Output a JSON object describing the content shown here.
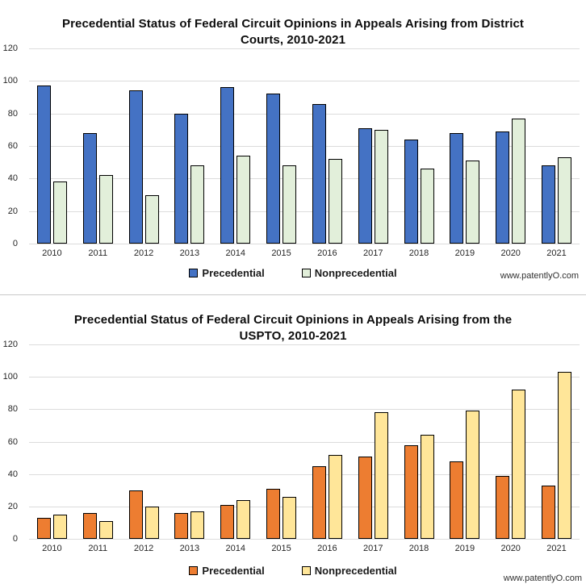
{
  "watermark": "www.patentlyO.com",
  "chart_data": [
    {
      "type": "bar",
      "title": "Precedential Status of Federal Circuit Opinions in Appeals Arising from District\nCourts, 2010-2021",
      "categories": [
        "2010",
        "2011",
        "2012",
        "2013",
        "2014",
        "2015",
        "2016",
        "2017",
        "2018",
        "2019",
        "2020",
        "2021"
      ],
      "series": [
        {
          "name": "Precedential",
          "color": "#4472C4",
          "values": [
            97,
            68,
            94,
            80,
            96,
            92,
            86,
            71,
            64,
            68,
            69,
            48
          ]
        },
        {
          "name": "Nonprecedential",
          "color": "#E2EFDA",
          "values": [
            38,
            42,
            30,
            48,
            54,
            48,
            52,
            70,
            46,
            51,
            77,
            53
          ]
        }
      ],
      "ylim": [
        0,
        120
      ],
      "ytick_interval": 20,
      "grid": true,
      "bar_border_color": "#000000",
      "legend_position": "bottom",
      "watermark": "www.patentlyO.com"
    },
    {
      "type": "bar",
      "title": "Precedential Status of Federal Circuit Opinions in Appeals Arising from the\nUSPTO, 2010-2021",
      "categories": [
        "2010",
        "2011",
        "2012",
        "2013",
        "2014",
        "2015",
        "2016",
        "2017",
        "2018",
        "2019",
        "2020",
        "2021"
      ],
      "series": [
        {
          "name": "Precedential",
          "color": "#ED7D31",
          "values": [
            13,
            16,
            30,
            16,
            21,
            31,
            45,
            51,
            58,
            48,
            39,
            33
          ]
        },
        {
          "name": "Nonprecedential",
          "color": "#FFE699",
          "values": [
            15,
            11,
            20,
            17,
            24,
            26,
            52,
            78,
            64,
            79,
            92,
            103
          ]
        }
      ],
      "ylim": [
        0,
        120
      ],
      "ytick_interval": 20,
      "grid": true,
      "bar_border_color": "#000000",
      "legend_position": "bottom",
      "watermark": "www.patentlyO.com"
    }
  ]
}
